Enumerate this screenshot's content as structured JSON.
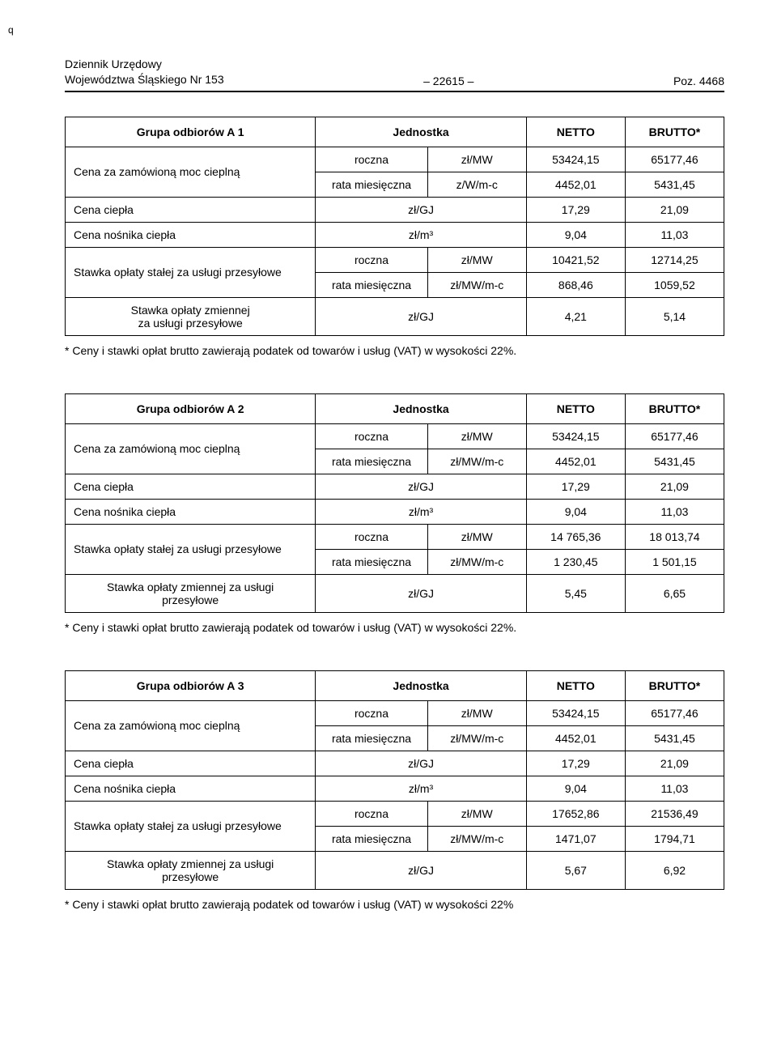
{
  "corner_mark": "q",
  "header": {
    "journal": "Dziennik Urzędowy",
    "region_line": "Województwa Śląskiego Nr 153",
    "page_number": "– 22615 –",
    "position": "Poz. 4468"
  },
  "tables": [
    {
      "title": "Grupa odbiorów A 1",
      "head": {
        "unit": "Jednostka",
        "netto": "NETTO",
        "brutto": "BRUTTO*"
      },
      "rows": [
        {
          "type": "two",
          "label": "Cena za zamówioną moc cieplną",
          "r1": {
            "period": "roczna",
            "unit": "zł/MW",
            "netto": "53424,15",
            "brutto": "65177,46"
          },
          "r2": {
            "period": "rata miesięczna",
            "unit": "z/W/m-c",
            "netto": "4452,01",
            "brutto": "5431,45"
          }
        },
        {
          "type": "single",
          "label": "Cena ciepła",
          "unit": "zł/GJ",
          "netto": "17,29",
          "brutto": "21,09"
        },
        {
          "type": "single",
          "label": "Cena nośnika ciepła",
          "unit": "zł/m³",
          "netto": "9,04",
          "brutto": "11,03"
        },
        {
          "type": "two",
          "label": "Stawka opłaty stałej za usługi przesyłowe",
          "r1": {
            "period": "roczna",
            "unit": "zł/MW",
            "netto": "10421,52",
            "brutto": "12714,25"
          },
          "r2": {
            "period": "rata miesięczna",
            "unit": "zł/MW/m-c",
            "netto": "868,46",
            "brutto": "1059,52"
          }
        },
        {
          "type": "single2",
          "label": "Stawka opłaty zmiennej\nza usługi przesyłowe",
          "unit": "zł/GJ",
          "netto": "4,21",
          "brutto": "5,14"
        }
      ],
      "footnote": "* Ceny i stawki opłat brutto zawierają podatek od towarów i usług (VAT) w wysokości 22%."
    },
    {
      "title": "Grupa odbiorów A 2",
      "head": {
        "unit": "Jednostka",
        "netto": "NETTO",
        "brutto": "BRUTTO*"
      },
      "rows": [
        {
          "type": "two",
          "label": "Cena za zamówioną moc cieplną",
          "r1": {
            "period": "roczna",
            "unit": "zł/MW",
            "netto": "53424,15",
            "brutto": "65177,46"
          },
          "r2": {
            "period": "rata miesięczna",
            "unit": "zł/MW/m-c",
            "netto": "4452,01",
            "brutto": "5431,45"
          }
        },
        {
          "type": "single",
          "label": "Cena ciepła",
          "unit": "zł/GJ",
          "netto": "17,29",
          "brutto": "21,09"
        },
        {
          "type": "single",
          "label": "Cena nośnika ciepła",
          "unit": "zł/m³",
          "netto": "9,04",
          "brutto": "11,03"
        },
        {
          "type": "two",
          "label": "Stawka opłaty stałej za usługi przesyłowe",
          "r1": {
            "period": "roczna",
            "unit": "zł/MW",
            "netto": "14 765,36",
            "brutto": "18 013,74"
          },
          "r2": {
            "period": "rata miesięczna",
            "unit": "zł/MW/m-c",
            "netto": "1 230,45",
            "brutto": "1 501,15"
          }
        },
        {
          "type": "single2",
          "label": "Stawka opłaty zmiennej za usługi\nprzesyłowe",
          "unit": "zł/GJ",
          "netto": "5,45",
          "brutto": "6,65"
        }
      ],
      "footnote": "* Ceny i stawki opłat brutto zawierają podatek od towarów i usług (VAT) w wysokości 22%."
    },
    {
      "title": "Grupa odbiorów A 3",
      "head": {
        "unit": "Jednostka",
        "netto": "NETTO",
        "brutto": "BRUTTO*"
      },
      "rows": [
        {
          "type": "two",
          "label": "Cena za zamówioną moc cieplną",
          "r1": {
            "period": "roczna",
            "unit": "zł/MW",
            "netto": "53424,15",
            "brutto": "65177,46"
          },
          "r2": {
            "period": "rata miesięczna",
            "unit": "zł/MW/m-c",
            "netto": "4452,01",
            "brutto": "5431,45"
          }
        },
        {
          "type": "single",
          "label": "Cena ciepła",
          "unit": "zł/GJ",
          "netto": "17,29",
          "brutto": "21,09"
        },
        {
          "type": "single",
          "label": "Cena nośnika ciepła",
          "unit": "zł/m³",
          "netto": "9,04",
          "brutto": "11,03"
        },
        {
          "type": "two",
          "label": "Stawka opłaty stałej za usługi przesyłowe",
          "r1": {
            "period": "roczna",
            "unit": "zł/MW",
            "netto": "17652,86",
            "brutto": "21536,49"
          },
          "r2": {
            "period": "rata miesięczna",
            "unit": "zł/MW/m-c",
            "netto": "1471,07",
            "brutto": "1794,71"
          }
        },
        {
          "type": "single2",
          "label": "Stawka opłaty zmiennej za usługi\nprzesyłowe",
          "unit": "zł/GJ",
          "netto": "5,67",
          "brutto": "6,92"
        }
      ],
      "footnote": "* Ceny i stawki opłat brutto zawierają podatek od towarów i usług (VAT) w wysokości 22%"
    }
  ]
}
